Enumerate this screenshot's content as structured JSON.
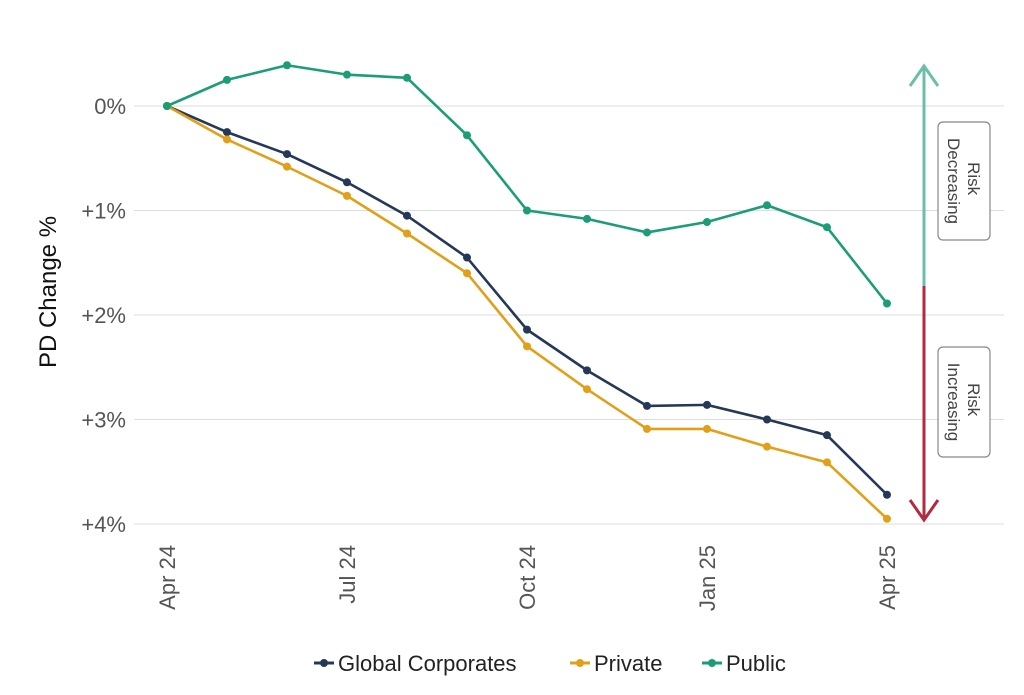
{
  "chart_data": {
    "type": "line",
    "ylabel": "PD Change %",
    "xlabel": "",
    "x": [
      "Apr 24",
      "May 24",
      "Jun 24",
      "Jul 24",
      "Aug 24",
      "Sep 24",
      "Oct 24",
      "Nov 24",
      "Dec 24",
      "Jan 25",
      "Feb 25",
      "Mar 25",
      "Apr 25"
    ],
    "x_tick_labels": [
      {
        "index": 0,
        "label": "Apr 24"
      },
      {
        "index": 3,
        "label": "Jul 24"
      },
      {
        "index": 6,
        "label": "Oct 24"
      },
      {
        "index": 9,
        "label": "Jan 25"
      },
      {
        "index": 12,
        "label": "Apr 25"
      }
    ],
    "y_ticks": [
      {
        "value": 0,
        "label": "0%"
      },
      {
        "value": 1,
        "label": "+1%"
      },
      {
        "value": 2,
        "label": "+2%"
      },
      {
        "value": 3,
        "label": "+3%"
      },
      {
        "value": 4,
        "label": "+4%"
      }
    ],
    "ylim": [
      -0.4,
      4.0
    ],
    "y_inverted": true,
    "grid": true,
    "legend": "bottom",
    "series": [
      {
        "name": "Global Corporates",
        "color": "#253858",
        "values": [
          0,
          0.25,
          0.46,
          0.73,
          1.05,
          1.45,
          2.14,
          2.53,
          2.87,
          2.86,
          3.0,
          3.15,
          3.72
        ]
      },
      {
        "name": "Private",
        "color": "#E2A019",
        "values": [
          0,
          0.32,
          0.58,
          0.86,
          1.22,
          1.6,
          2.3,
          2.71,
          3.09,
          3.09,
          3.26,
          3.41,
          3.95
        ]
      },
      {
        "name": "Public",
        "color": "#1B9E77",
        "values": [
          0,
          -0.25,
          -0.39,
          -0.3,
          -0.27,
          0.28,
          1.0,
          1.08,
          1.21,
          1.11,
          0.95,
          1.16,
          1.89
        ]
      }
    ],
    "annotations": {
      "decreasing": {
        "line1": "Risk",
        "line2": "Decreasing",
        "color": "#6BBFA8"
      },
      "increasing": {
        "line1": "Risk",
        "line2": "Increasing",
        "color": "#B22A3F"
      }
    }
  }
}
